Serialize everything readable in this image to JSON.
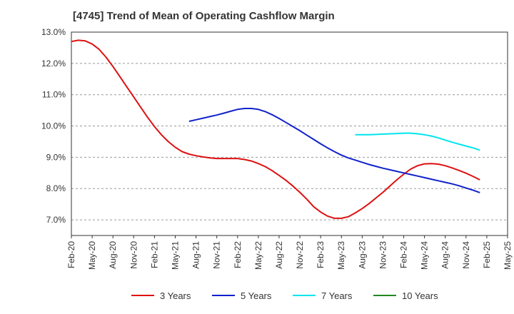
{
  "chart_data": {
    "type": "line",
    "title": "[4745]  Trend of Mean of Operating Cashflow Margin",
    "xlabel": "",
    "ylabel": "",
    "ylim": [
      6.5,
      13.0
    ],
    "y_ticks": [
      "7.0%",
      "8.0%",
      "9.0%",
      "10.0%",
      "11.0%",
      "12.0%",
      "13.0%"
    ],
    "y_tick_values": [
      7.0,
      8.0,
      9.0,
      10.0,
      11.0,
      12.0,
      13.0
    ],
    "x_ticks": [
      "Feb-20",
      "May-20",
      "Aug-20",
      "Nov-20",
      "Feb-21",
      "May-21",
      "Aug-21",
      "Nov-21",
      "Feb-22",
      "May-22",
      "Aug-22",
      "Nov-22",
      "Feb-23",
      "May-23",
      "Aug-23",
      "Nov-23",
      "Feb-24",
      "May-24",
      "Aug-24",
      "Nov-24",
      "Feb-25",
      "May-25"
    ],
    "grid": "y-dashed",
    "legend_position": "bottom",
    "series": [
      {
        "name": "3 Years",
        "color": "#dd1111",
        "points": [
          [
            "Feb-20",
            12.7
          ],
          [
            "Mar-20",
            12.74
          ],
          [
            "Apr-20",
            12.72
          ],
          [
            "May-20",
            12.62
          ],
          [
            "Jun-20",
            12.45
          ],
          [
            "Jul-20",
            12.2
          ],
          [
            "Aug-20",
            11.9
          ],
          [
            "Sep-20",
            11.58
          ],
          [
            "Oct-20",
            11.25
          ],
          [
            "Nov-20",
            10.93
          ],
          [
            "Dec-20",
            10.6
          ],
          [
            "Jan-21",
            10.28
          ],
          [
            "Feb-21",
            9.98
          ],
          [
            "Mar-21",
            9.72
          ],
          [
            "Apr-21",
            9.5
          ],
          [
            "May-21",
            9.32
          ],
          [
            "Jun-21",
            9.18
          ],
          [
            "Jul-21",
            9.1
          ],
          [
            "Aug-21",
            9.05
          ],
          [
            "Sep-21",
            9.01
          ],
          [
            "Oct-21",
            8.98
          ],
          [
            "Nov-21",
            8.96
          ],
          [
            "Dec-21",
            8.96
          ],
          [
            "Jan-22",
            8.96
          ],
          [
            "Feb-22",
            8.96
          ],
          [
            "Mar-22",
            8.93
          ],
          [
            "Apr-22",
            8.88
          ],
          [
            "May-22",
            8.8
          ],
          [
            "Jun-22",
            8.7
          ],
          [
            "Jul-22",
            8.57
          ],
          [
            "Aug-22",
            8.42
          ],
          [
            "Sep-22",
            8.26
          ],
          [
            "Oct-22",
            8.08
          ],
          [
            "Nov-22",
            7.88
          ],
          [
            "Dec-22",
            7.66
          ],
          [
            "Jan-23",
            7.42
          ],
          [
            "Feb-23",
            7.25
          ],
          [
            "Mar-23",
            7.12
          ],
          [
            "Apr-23",
            7.05
          ],
          [
            "May-23",
            7.05
          ],
          [
            "Jun-23",
            7.1
          ],
          [
            "Jul-23",
            7.22
          ],
          [
            "Aug-23",
            7.36
          ],
          [
            "Sep-23",
            7.52
          ],
          [
            "Oct-23",
            7.7
          ],
          [
            "Nov-23",
            7.88
          ],
          [
            "Dec-23",
            8.08
          ],
          [
            "Jan-24",
            8.28
          ],
          [
            "Feb-24",
            8.46
          ],
          [
            "Mar-24",
            8.62
          ],
          [
            "Apr-24",
            8.73
          ],
          [
            "May-24",
            8.79
          ],
          [
            "Jun-24",
            8.8
          ],
          [
            "Jul-24",
            8.78
          ],
          [
            "Aug-24",
            8.73
          ],
          [
            "Sep-24",
            8.66
          ],
          [
            "Oct-24",
            8.58
          ],
          [
            "Nov-24",
            8.49
          ],
          [
            "Dec-24",
            8.39
          ],
          [
            "Jan-25",
            8.28
          ]
        ]
      },
      {
        "name": "5 Years",
        "color": "#1122cc",
        "points": [
          [
            "Jul-21",
            10.15
          ],
          [
            "Aug-21",
            10.2
          ],
          [
            "Sep-21",
            10.25
          ],
          [
            "Oct-21",
            10.3
          ],
          [
            "Nov-21",
            10.35
          ],
          [
            "Dec-21",
            10.41
          ],
          [
            "Jan-22",
            10.47
          ],
          [
            "Feb-22",
            10.53
          ],
          [
            "Mar-22",
            10.56
          ],
          [
            "Apr-22",
            10.56
          ],
          [
            "May-22",
            10.53
          ],
          [
            "Jun-22",
            10.46
          ],
          [
            "Jul-22",
            10.36
          ],
          [
            "Aug-22",
            10.24
          ],
          [
            "Sep-22",
            10.11
          ],
          [
            "Oct-22",
            9.98
          ],
          [
            "Nov-22",
            9.85
          ],
          [
            "Dec-22",
            9.71
          ],
          [
            "Jan-23",
            9.57
          ],
          [
            "Feb-23",
            9.43
          ],
          [
            "Mar-23",
            9.3
          ],
          [
            "Apr-23",
            9.18
          ],
          [
            "May-23",
            9.07
          ],
          [
            "Jun-23",
            8.98
          ],
          [
            "Jul-23",
            8.91
          ],
          [
            "Aug-23",
            8.84
          ],
          [
            "Sep-23",
            8.77
          ],
          [
            "Oct-23",
            8.71
          ],
          [
            "Nov-23",
            8.65
          ],
          [
            "Dec-23",
            8.6
          ],
          [
            "Jan-24",
            8.55
          ],
          [
            "Feb-24",
            8.5
          ],
          [
            "Mar-24",
            8.45
          ],
          [
            "Apr-24",
            8.4
          ],
          [
            "May-24",
            8.35
          ],
          [
            "Jun-24",
            8.3
          ],
          [
            "Jul-24",
            8.25
          ],
          [
            "Aug-24",
            8.2
          ],
          [
            "Sep-24",
            8.15
          ],
          [
            "Oct-24",
            8.09
          ],
          [
            "Nov-24",
            8.02
          ],
          [
            "Dec-24",
            7.95
          ],
          [
            "Jan-25",
            7.87
          ]
        ]
      },
      {
        "name": "7 Years",
        "color": "#00e5ee",
        "points": [
          [
            "Jul-23",
            9.72
          ],
          [
            "Aug-23",
            9.72
          ],
          [
            "Sep-23",
            9.72
          ],
          [
            "Oct-23",
            9.73
          ],
          [
            "Nov-23",
            9.74
          ],
          [
            "Dec-23",
            9.75
          ],
          [
            "Jan-24",
            9.76
          ],
          [
            "Feb-24",
            9.77
          ],
          [
            "Mar-24",
            9.77
          ],
          [
            "Apr-24",
            9.75
          ],
          [
            "May-24",
            9.72
          ],
          [
            "Jun-24",
            9.68
          ],
          [
            "Jul-24",
            9.62
          ],
          [
            "Aug-24",
            9.55
          ],
          [
            "Sep-24",
            9.48
          ],
          [
            "Oct-24",
            9.42
          ],
          [
            "Nov-24",
            9.36
          ],
          [
            "Dec-24",
            9.3
          ],
          [
            "Jan-25",
            9.23
          ]
        ]
      },
      {
        "name": "10 Years",
        "color": "#228822",
        "points": []
      }
    ]
  }
}
